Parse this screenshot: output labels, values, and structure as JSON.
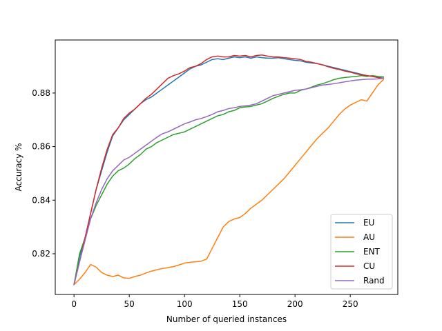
{
  "chart_data": {
    "type": "line",
    "xlabel": "Number of queried instances",
    "ylabel": "Accuracy %",
    "xlim": [
      -17,
      293
    ],
    "ylim": [
      0.8048,
      0.8998
    ],
    "xticks": [
      0,
      50,
      100,
      150,
      200,
      250
    ],
    "yticks": [
      0.82,
      0.84,
      0.86,
      0.88
    ],
    "xtick_labels": [
      "0",
      "50",
      "100",
      "150",
      "200",
      "250"
    ],
    "ytick_labels": [
      "0.82",
      "0.84",
      "0.86",
      "0.88"
    ],
    "grid": false,
    "legend_position": "lower-right",
    "series": [
      {
        "name": "EU",
        "color": "#1f77b4",
        "x": [
          0,
          5,
          10,
          15,
          20,
          25,
          30,
          35,
          40,
          45,
          50,
          55,
          60,
          65,
          70,
          75,
          80,
          85,
          90,
          95,
          100,
          105,
          110,
          115,
          120,
          125,
          130,
          135,
          140,
          145,
          150,
          155,
          160,
          165,
          170,
          175,
          180,
          185,
          190,
          195,
          200,
          205,
          210,
          215,
          220,
          225,
          230,
          235,
          240,
          245,
          250,
          255,
          260,
          265,
          270,
          275,
          280
        ],
        "y": [
          0.8085,
          0.819,
          0.826,
          0.835,
          0.844,
          0.851,
          0.858,
          0.864,
          0.867,
          0.87,
          0.872,
          0.874,
          0.876,
          0.8775,
          0.8785,
          0.88,
          0.8815,
          0.883,
          0.8845,
          0.886,
          0.8875,
          0.889,
          0.89,
          0.8905,
          0.8915,
          0.8925,
          0.8928,
          0.8925,
          0.893,
          0.8935,
          0.8932,
          0.8935,
          0.893,
          0.8935,
          0.8932,
          0.893,
          0.893,
          0.8932,
          0.8928,
          0.8925,
          0.8922,
          0.892,
          0.8915,
          0.8912,
          0.891,
          0.8905,
          0.89,
          0.8895,
          0.889,
          0.8885,
          0.888,
          0.8875,
          0.887,
          0.8865,
          0.8862,
          0.8858,
          0.8855
        ]
      },
      {
        "name": "AU",
        "color": "#ff7f0e",
        "x": [
          0,
          5,
          10,
          15,
          20,
          25,
          30,
          35,
          40,
          45,
          50,
          55,
          60,
          65,
          70,
          75,
          80,
          85,
          90,
          95,
          100,
          105,
          110,
          115,
          120,
          125,
          130,
          135,
          140,
          145,
          150,
          155,
          160,
          165,
          170,
          175,
          180,
          185,
          190,
          195,
          200,
          205,
          210,
          215,
          220,
          225,
          230,
          235,
          240,
          245,
          250,
          255,
          260,
          265,
          270,
          275,
          280
        ],
        "y": [
          0.8085,
          0.8105,
          0.813,
          0.816,
          0.815,
          0.813,
          0.812,
          0.8115,
          0.812,
          0.811,
          0.8108,
          0.8115,
          0.812,
          0.8128,
          0.8135,
          0.814,
          0.8145,
          0.8148,
          0.8152,
          0.8158,
          0.8165,
          0.8168,
          0.817,
          0.8172,
          0.818,
          0.822,
          0.826,
          0.83,
          0.832,
          0.833,
          0.8335,
          0.835,
          0.837,
          0.8385,
          0.84,
          0.842,
          0.844,
          0.846,
          0.848,
          0.8505,
          0.853,
          0.8555,
          0.858,
          0.8605,
          0.863,
          0.865,
          0.867,
          0.8695,
          0.872,
          0.874,
          0.8755,
          0.8765,
          0.8775,
          0.877,
          0.88,
          0.883,
          0.885
        ]
      },
      {
        "name": "ENT",
        "color": "#2ca02c",
        "x": [
          0,
          5,
          10,
          15,
          20,
          25,
          30,
          35,
          40,
          45,
          50,
          55,
          60,
          65,
          70,
          75,
          80,
          85,
          90,
          95,
          100,
          105,
          110,
          115,
          120,
          125,
          130,
          135,
          140,
          145,
          150,
          155,
          160,
          165,
          170,
          175,
          180,
          185,
          190,
          195,
          200,
          205,
          210,
          215,
          220,
          225,
          230,
          235,
          240,
          245,
          250,
          255,
          260,
          265,
          270,
          275,
          280
        ],
        "y": [
          0.8085,
          0.82,
          0.826,
          0.833,
          0.838,
          0.842,
          0.846,
          0.849,
          0.851,
          0.852,
          0.8535,
          0.8555,
          0.857,
          0.859,
          0.86,
          0.8615,
          0.8625,
          0.8635,
          0.8645,
          0.865,
          0.8655,
          0.8665,
          0.8675,
          0.8685,
          0.8695,
          0.8705,
          0.8715,
          0.872,
          0.873,
          0.8735,
          0.8745,
          0.8748,
          0.875,
          0.8755,
          0.876,
          0.877,
          0.878,
          0.8788,
          0.8795,
          0.88,
          0.88,
          0.881,
          0.8815,
          0.8822,
          0.883,
          0.8835,
          0.8842,
          0.885,
          0.8855,
          0.8858,
          0.886,
          0.8862,
          0.8865,
          0.8862,
          0.8865,
          0.8862,
          0.886
        ]
      },
      {
        "name": "CU",
        "color": "#d62728",
        "x": [
          0,
          5,
          10,
          15,
          20,
          25,
          30,
          35,
          40,
          45,
          50,
          55,
          60,
          65,
          70,
          75,
          80,
          85,
          90,
          95,
          100,
          105,
          110,
          115,
          120,
          125,
          130,
          135,
          140,
          145,
          150,
          155,
          160,
          165,
          170,
          175,
          180,
          185,
          190,
          195,
          200,
          205,
          210,
          215,
          220,
          225,
          230,
          235,
          240,
          245,
          250,
          255,
          260,
          265,
          270,
          275,
          280
        ],
        "y": [
          0.8085,
          0.817,
          0.826,
          0.835,
          0.844,
          0.852,
          0.859,
          0.8645,
          0.867,
          0.8705,
          0.8725,
          0.874,
          0.876,
          0.878,
          0.8795,
          0.8815,
          0.8835,
          0.8855,
          0.8865,
          0.8872,
          0.8882,
          0.8895,
          0.89,
          0.891,
          0.8925,
          0.8935,
          0.8938,
          0.8935,
          0.8935,
          0.894,
          0.8938,
          0.894,
          0.8935,
          0.894,
          0.8942,
          0.8938,
          0.8935,
          0.8935,
          0.8932,
          0.893,
          0.8928,
          0.8925,
          0.8918,
          0.8915,
          0.891,
          0.8905,
          0.8898,
          0.8892,
          0.8888,
          0.8882,
          0.8878,
          0.8872,
          0.8868,
          0.8865,
          0.8862,
          0.8858,
          0.8855
        ]
      },
      {
        "name": "Rand",
        "color": "#9467bd",
        "x": [
          0,
          5,
          10,
          15,
          20,
          25,
          30,
          35,
          40,
          45,
          50,
          55,
          60,
          65,
          70,
          75,
          80,
          85,
          90,
          95,
          100,
          105,
          110,
          115,
          120,
          125,
          130,
          135,
          140,
          145,
          150,
          155,
          160,
          165,
          170,
          175,
          180,
          185,
          190,
          195,
          200,
          205,
          210,
          215,
          220,
          225,
          230,
          235,
          240,
          245,
          250,
          255,
          260,
          265,
          270,
          275,
          280
        ],
        "y": [
          0.8085,
          0.817,
          0.825,
          0.833,
          0.839,
          0.844,
          0.848,
          0.851,
          0.853,
          0.855,
          0.856,
          0.8575,
          0.859,
          0.8605,
          0.862,
          0.8635,
          0.8648,
          0.8655,
          0.8665,
          0.8675,
          0.8685,
          0.8692,
          0.87,
          0.8705,
          0.8712,
          0.872,
          0.873,
          0.8735,
          0.8742,
          0.8745,
          0.875,
          0.8752,
          0.8755,
          0.876,
          0.877,
          0.878,
          0.879,
          0.8795,
          0.88,
          0.8805,
          0.881,
          0.8812,
          0.8815,
          0.882,
          0.8825,
          0.883,
          0.8832,
          0.8835,
          0.8838,
          0.8842,
          0.8845,
          0.8848,
          0.885,
          0.8852,
          0.8852,
          0.8853,
          0.8855
        ]
      }
    ]
  }
}
